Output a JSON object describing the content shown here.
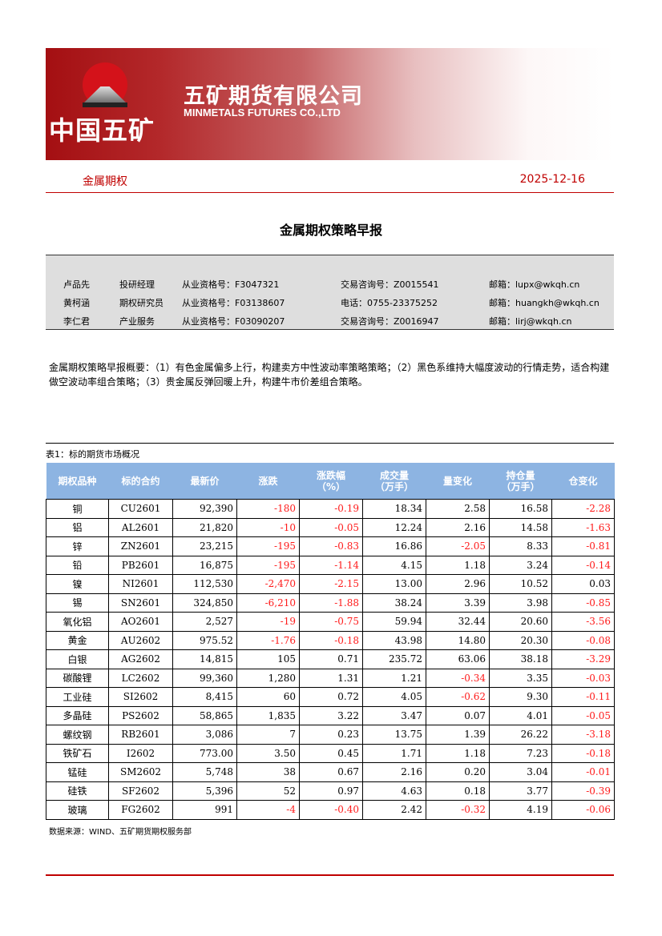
{
  "header": {
    "logo_text": "MINMETALS",
    "brand_cn": "中国五矿",
    "company_cn": "五矿期货有限公司",
    "company_en": "MINMETALS FUTURES CO.,LTD",
    "section": "金属期权",
    "date": "2025-12-16"
  },
  "title": "金属期权策略早报",
  "analysts": [
    {
      "name": "卢品先",
      "role": "投研经理",
      "license": "从业资格号：F3047321",
      "contact": "交易咨询号：Z0015541",
      "email": "邮箱：lupx@wkqh.cn"
    },
    {
      "name": "黄柯涵",
      "role": "期权研究员",
      "license": "从业资格号：F03138607",
      "contact": "电话：0755-23375252",
      "email": "邮箱：huangkh@wkqh.cn"
    },
    {
      "name": "李仁君",
      "role": "产业服务",
      "license": "从业资格号：F03090207",
      "contact": "交易咨询号：Z0016947",
      "email": "邮箱：lirj@wkqh.cn"
    }
  ],
  "summary": "金属期权策略早报概要：（1）有色金属偏多上行，构建卖方中性波动率策略策略；（2）黑色系维持大幅度波动的行情走势，适合构建做空波动率组合策略；（3）贵金属反弹回暖上升，构建牛市价差组合策略。",
  "table": {
    "caption": "表1：标的期货市场概况",
    "headers": [
      "期权品种",
      "标的合约",
      "最新价",
      "涨跌",
      "涨跌幅\n（%）",
      "成交量\n（万手）",
      "量变化",
      "持仓量\n（万手）",
      "仓变化"
    ],
    "rows": [
      [
        "铜",
        "CU2601",
        "92,390",
        "-180",
        "-0.19",
        "18.34",
        "2.58",
        "16.58",
        "-2.28"
      ],
      [
        "铝",
        "AL2601",
        "21,820",
        "-10",
        "-0.05",
        "12.24",
        "2.16",
        "14.58",
        "-1.63"
      ],
      [
        "锌",
        "ZN2601",
        "23,215",
        "-195",
        "-0.83",
        "16.86",
        "-2.05",
        "8.33",
        "-0.81"
      ],
      [
        "铅",
        "PB2601",
        "16,875",
        "-195",
        "-1.14",
        "4.15",
        "1.18",
        "3.24",
        "-0.14"
      ],
      [
        "镍",
        "NI2601",
        "112,530",
        "-2,470",
        "-2.15",
        "13.00",
        "2.96",
        "10.52",
        "0.03"
      ],
      [
        "锡",
        "SN2601",
        "324,850",
        "-6,210",
        "-1.88",
        "38.24",
        "3.39",
        "3.98",
        "-0.85"
      ],
      [
        "氧化铝",
        "AO2601",
        "2,527",
        "-19",
        "-0.75",
        "59.94",
        "32.44",
        "20.60",
        "-3.56"
      ],
      [
        "黄金",
        "AU2602",
        "975.52",
        "-1.76",
        "-0.18",
        "43.98",
        "14.80",
        "20.30",
        "-0.08"
      ],
      [
        "白银",
        "AG2602",
        "14,815",
        "105",
        "0.71",
        "235.72",
        "63.06",
        "38.18",
        "-3.29"
      ],
      [
        "碳酸锂",
        "LC2602",
        "99,360",
        "1,280",
        "1.31",
        "1.21",
        "-0.34",
        "3.35",
        "-0.03"
      ],
      [
        "工业硅",
        "SI2602",
        "8,415",
        "60",
        "0.72",
        "4.05",
        "-0.62",
        "9.30",
        "-0.11"
      ],
      [
        "多晶硅",
        "PS2602",
        "58,865",
        "1,835",
        "3.22",
        "3.47",
        "0.07",
        "4.01",
        "-0.05"
      ],
      [
        "螺纹钢",
        "RB2601",
        "3,086",
        "7",
        "0.23",
        "13.75",
        "1.39",
        "26.22",
        "-3.18"
      ],
      [
        "铁矿石",
        "I2602",
        "773.00",
        "3.50",
        "0.45",
        "1.71",
        "1.18",
        "7.23",
        "-0.18"
      ],
      [
        "锰硅",
        "SM2602",
        "5,748",
        "38",
        "0.67",
        "2.16",
        "0.20",
        "3.04",
        "-0.01"
      ],
      [
        "硅铁",
        "SF2602",
        "5,396",
        "52",
        "0.97",
        "4.63",
        "0.18",
        "3.77",
        "-0.39"
      ],
      [
        "玻璃",
        "FG2602",
        "991",
        "-4",
        "-0.40",
        "2.42",
        "-0.32",
        "4.19",
        "-0.06"
      ]
    ],
    "source": "数据来源：WIND、五矿期货期权服务部"
  },
  "colors": {
    "brand_red": "#c00000",
    "header_blue": "#8db4e2",
    "negative": "#ff1a1a"
  }
}
